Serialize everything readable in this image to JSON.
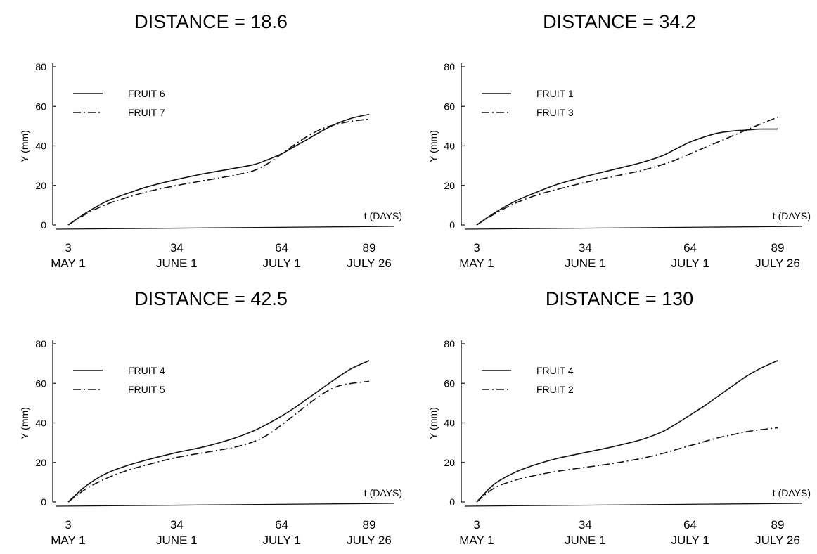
{
  "chart_data": [
    {
      "type": "line",
      "title": "DISTANCE =  18.6",
      "ylabel": "Y (mm)",
      "xlabel": "t (DAYS)",
      "ylim": [
        0,
        80
      ],
      "xlim": [
        3,
        89
      ],
      "yticks": [
        0,
        20,
        40,
        60,
        80
      ],
      "xticks": [
        {
          "value": 3,
          "label": "3",
          "date": "MAY 1"
        },
        {
          "value": 34,
          "label": "34",
          "date": "JUNE 1"
        },
        {
          "value": 64,
          "label": "64",
          "date": "JULY 1"
        },
        {
          "value": 89,
          "label": "89",
          "date": "JULY 26"
        }
      ],
      "legend_position": "top-left",
      "series": [
        {
          "name": "FRUIT 6",
          "style": "solid",
          "x": [
            3,
            8,
            14,
            20,
            26,
            34,
            42,
            50,
            56,
            60,
            64,
            68,
            72,
            76,
            80,
            84,
            89
          ],
          "y": [
            0,
            6,
            12,
            16,
            19.5,
            23,
            26,
            28.5,
            30.5,
            33,
            36,
            40,
            44,
            48,
            51.5,
            54,
            56
          ]
        },
        {
          "name": "FRUIT 7",
          "style": "dashdot",
          "x": [
            3,
            8,
            14,
            20,
            26,
            34,
            42,
            50,
            56,
            60,
            64,
            68,
            72,
            76,
            80,
            84,
            89
          ],
          "y": [
            0,
            5.5,
            10.5,
            14,
            17,
            20,
            22.5,
            25,
            27.5,
            31,
            36,
            41,
            45.5,
            49,
            51,
            52.5,
            53.5
          ]
        }
      ]
    },
    {
      "type": "line",
      "title": "DISTANCE =  34.2",
      "ylabel": "Y (mm)",
      "xlabel": "t (DAYS)",
      "ylim": [
        0,
        80
      ],
      "xlim": [
        3,
        89
      ],
      "yticks": [
        0,
        20,
        40,
        60,
        80
      ],
      "xticks": [
        {
          "value": 3,
          "label": "3",
          "date": "MAY 1"
        },
        {
          "value": 34,
          "label": "34",
          "date": "JUNE 1"
        },
        {
          "value": 64,
          "label": "64",
          "date": "JULY 1"
        },
        {
          "value": 89,
          "label": "89",
          "date": "JULY 26"
        }
      ],
      "legend_position": "top-left",
      "series": [
        {
          "name": "FRUIT 1",
          "style": "solid",
          "x": [
            3,
            8,
            14,
            20,
            26,
            34,
            42,
            50,
            56,
            60,
            64,
            68,
            72,
            76,
            80,
            84,
            89
          ],
          "y": [
            0,
            6,
            12,
            16.5,
            20.5,
            24.5,
            28,
            31.5,
            35,
            38.5,
            42,
            44.5,
            46.5,
            47.5,
            48,
            48.5,
            48.5
          ]
        },
        {
          "name": "FRUIT 3",
          "style": "dashdot",
          "x": [
            3,
            8,
            14,
            20,
            26,
            34,
            42,
            50,
            56,
            60,
            64,
            68,
            72,
            76,
            80,
            84,
            89
          ],
          "y": [
            0,
            5.5,
            11,
            15,
            18,
            21.5,
            24.5,
            27.5,
            30.5,
            33,
            36,
            39,
            42,
            45,
            48,
            51,
            54.5
          ]
        }
      ]
    },
    {
      "type": "line",
      "title": "DISTANCE =  42.5",
      "ylabel": "Y (mm)",
      "xlabel": "t (DAYS)",
      "ylim": [
        0,
        80
      ],
      "xlim": [
        3,
        89
      ],
      "yticks": [
        0,
        20,
        40,
        60,
        80
      ],
      "xticks": [
        {
          "value": 3,
          "label": "3",
          "date": "MAY 1"
        },
        {
          "value": 34,
          "label": "34",
          "date": "JUNE 1"
        },
        {
          "value": 64,
          "label": "64",
          "date": "JULY 1"
        },
        {
          "value": 89,
          "label": "89",
          "date": "JULY 26"
        }
      ],
      "legend_position": "top-left",
      "series": [
        {
          "name": "FRUIT 4",
          "style": "solid",
          "x": [
            3,
            8,
            14,
            20,
            26,
            34,
            42,
            50,
            56,
            60,
            64,
            68,
            72,
            76,
            80,
            84,
            89
          ],
          "y": [
            0,
            8,
            14.5,
            18.5,
            21.5,
            25,
            28,
            32,
            36,
            39.5,
            43.5,
            48,
            53,
            58,
            63,
            67.5,
            71.5
          ]
        },
        {
          "name": "FRUIT 5",
          "style": "dashdot",
          "x": [
            3,
            8,
            14,
            20,
            26,
            34,
            42,
            50,
            56,
            60,
            64,
            68,
            72,
            76,
            80,
            84,
            89
          ],
          "y": [
            0,
            6.5,
            12,
            16,
            19,
            22.5,
            25,
            27.5,
            30.5,
            34,
            39,
            44.5,
            50,
            55,
            58.5,
            60,
            61
          ]
        }
      ]
    },
    {
      "type": "line",
      "title": "DISTANCE =  130",
      "ylabel": "Y (mm)",
      "xlabel": "t (DAYS)",
      "ylim": [
        0,
        80
      ],
      "xlim": [
        3,
        89
      ],
      "yticks": [
        0,
        20,
        40,
        60,
        80
      ],
      "xticks": [
        {
          "value": 3,
          "label": "3",
          "date": "MAY 1"
        },
        {
          "value": 34,
          "label": "34",
          "date": "JUNE 1"
        },
        {
          "value": 64,
          "label": "64",
          "date": "JULY 1"
        },
        {
          "value": 89,
          "label": "89",
          "date": "JULY 26"
        }
      ],
      "legend_position": "top-left",
      "series": [
        {
          "name": "FRUIT 4",
          "style": "solid",
          "x": [
            3,
            8,
            14,
            20,
            26,
            34,
            42,
            50,
            56,
            60,
            64,
            68,
            72,
            76,
            80,
            84,
            89
          ],
          "y": [
            0,
            9,
            15,
            19,
            22,
            25,
            28,
            31.5,
            35.5,
            39.5,
            44,
            48.5,
            53.5,
            58.5,
            63.5,
            67.5,
            71.5
          ]
        },
        {
          "name": "FRUIT 2",
          "style": "dashdot",
          "x": [
            3,
            8,
            14,
            20,
            26,
            34,
            42,
            50,
            56,
            60,
            64,
            68,
            72,
            76,
            80,
            84,
            89
          ],
          "y": [
            0,
            7,
            11,
            13.5,
            15.5,
            17.5,
            19.5,
            22,
            24.5,
            26.5,
            28.5,
            30.5,
            32.5,
            34,
            35.5,
            36.5,
            37.5
          ]
        }
      ]
    }
  ]
}
